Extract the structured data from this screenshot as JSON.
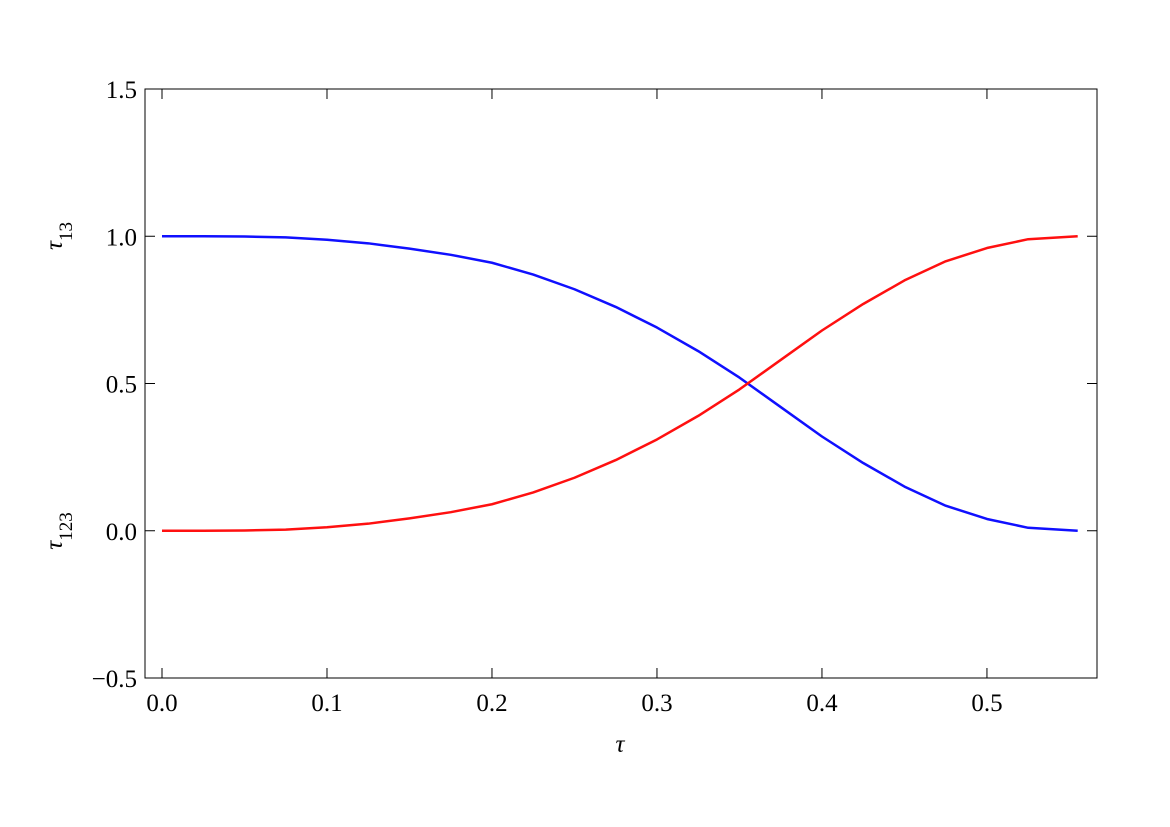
{
  "chart_data": {
    "type": "line",
    "xlabel": "τ",
    "ylabel_upper": {
      "symbol": "τ",
      "subscript": "13"
    },
    "ylabel_lower": {
      "symbol": "τ",
      "subscript": "123"
    },
    "x": [
      0,
      0.025,
      0.05,
      0.075,
      0.1,
      0.125,
      0.15,
      0.175,
      0.2,
      0.225,
      0.25,
      0.275,
      0.3,
      0.325,
      0.35,
      0.375,
      0.4,
      0.425,
      0.45,
      0.475,
      0.5,
      0.525,
      0.555
    ],
    "series": [
      {
        "color": "#1010ff",
        "values": [
          1,
          1,
          0.999,
          0.996,
          0.988,
          0.976,
          0.958,
          0.937,
          0.91,
          0.87,
          0.82,
          0.76,
          0.69,
          0.61,
          0.52,
          0.42,
          0.32,
          0.23,
          0.15,
          0.085,
          0.04,
          0.01,
          0
        ]
      },
      {
        "color": "#ff1010",
        "values": [
          0,
          0,
          0.001,
          0.004,
          0.012,
          0.024,
          0.042,
          0.063,
          0.09,
          0.13,
          0.18,
          0.24,
          0.31,
          0.39,
          0.48,
          0.58,
          0.68,
          0.77,
          0.85,
          0.915,
          0.96,
          0.99,
          1
        ]
      }
    ],
    "xlim": [
      -0.0103,
      0.5667
    ],
    "ylim": [
      -0.5,
      1.5
    ],
    "xticks": [
      {
        "value": 0,
        "label": "0.0"
      },
      0.1,
      0.2,
      0.3,
      0.4,
      0.5
    ],
    "yticks": [
      {
        "value": -0.5,
        "label": "−0.5"
      },
      {
        "value": 0,
        "label": "0.0"
      },
      0.5,
      {
        "value": 1,
        "label": "1.0"
      },
      1.5
    ]
  }
}
